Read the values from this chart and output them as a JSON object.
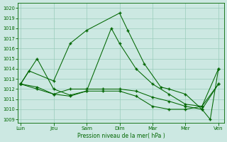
{
  "background_color": "#cce8e2",
  "grid_color": "#99ccbb",
  "line_color": "#006600",
  "xlabel": "Pression niveau de la mer( hPa )",
  "ylim": [
    1008.7,
    1020.5
  ],
  "yticks": [
    1009,
    1010,
    1011,
    1012,
    1013,
    1014,
    1015,
    1016,
    1017,
    1018,
    1019,
    1020
  ],
  "xtick_labels": [
    "Lun",
    "Jeu",
    "Sam",
    "Dim",
    "Mar",
    "Mer",
    "Ven"
  ],
  "xtick_positions": [
    0,
    12,
    24,
    36,
    48,
    60,
    72
  ],
  "xlim": [
    -1,
    74
  ],
  "series": [
    {
      "x": [
        0,
        3,
        12,
        18,
        24,
        36,
        39,
        45,
        51,
        54,
        60,
        66,
        69,
        72
      ],
      "y": [
        1012.5,
        1013.8,
        1012.8,
        1016.5,
        1017.8,
        1019.5,
        1017.8,
        1014.5,
        1012.2,
        1012.0,
        1011.5,
        1010.0,
        1009.0,
        1014.0
      ]
    },
    {
      "x": [
        0,
        6,
        12,
        18,
        24,
        33,
        36,
        42,
        48,
        54,
        60,
        66,
        72
      ],
      "y": [
        1012.5,
        1015.0,
        1012.0,
        1011.4,
        1011.8,
        1018.0,
        1016.5,
        1014.0,
        1012.5,
        1011.5,
        1010.5,
        1010.3,
        1012.5
      ]
    },
    {
      "x": [
        0,
        6,
        12,
        18,
        24,
        30,
        36,
        42,
        48,
        54,
        60,
        66,
        72
      ],
      "y": [
        1012.5,
        1012.0,
        1011.5,
        1012.0,
        1012.0,
        1012.0,
        1012.0,
        1011.8,
        1011.2,
        1010.8,
        1010.3,
        1010.0,
        1012.5
      ]
    },
    {
      "x": [
        0,
        6,
        12,
        18,
        24,
        30,
        36,
        42,
        48,
        54,
        60,
        66,
        72
      ],
      "y": [
        1012.5,
        1012.2,
        1011.5,
        1011.3,
        1011.8,
        1011.8,
        1011.8,
        1011.3,
        1010.3,
        1010.0,
        1010.0,
        1010.3,
        1014.0
      ]
    }
  ]
}
